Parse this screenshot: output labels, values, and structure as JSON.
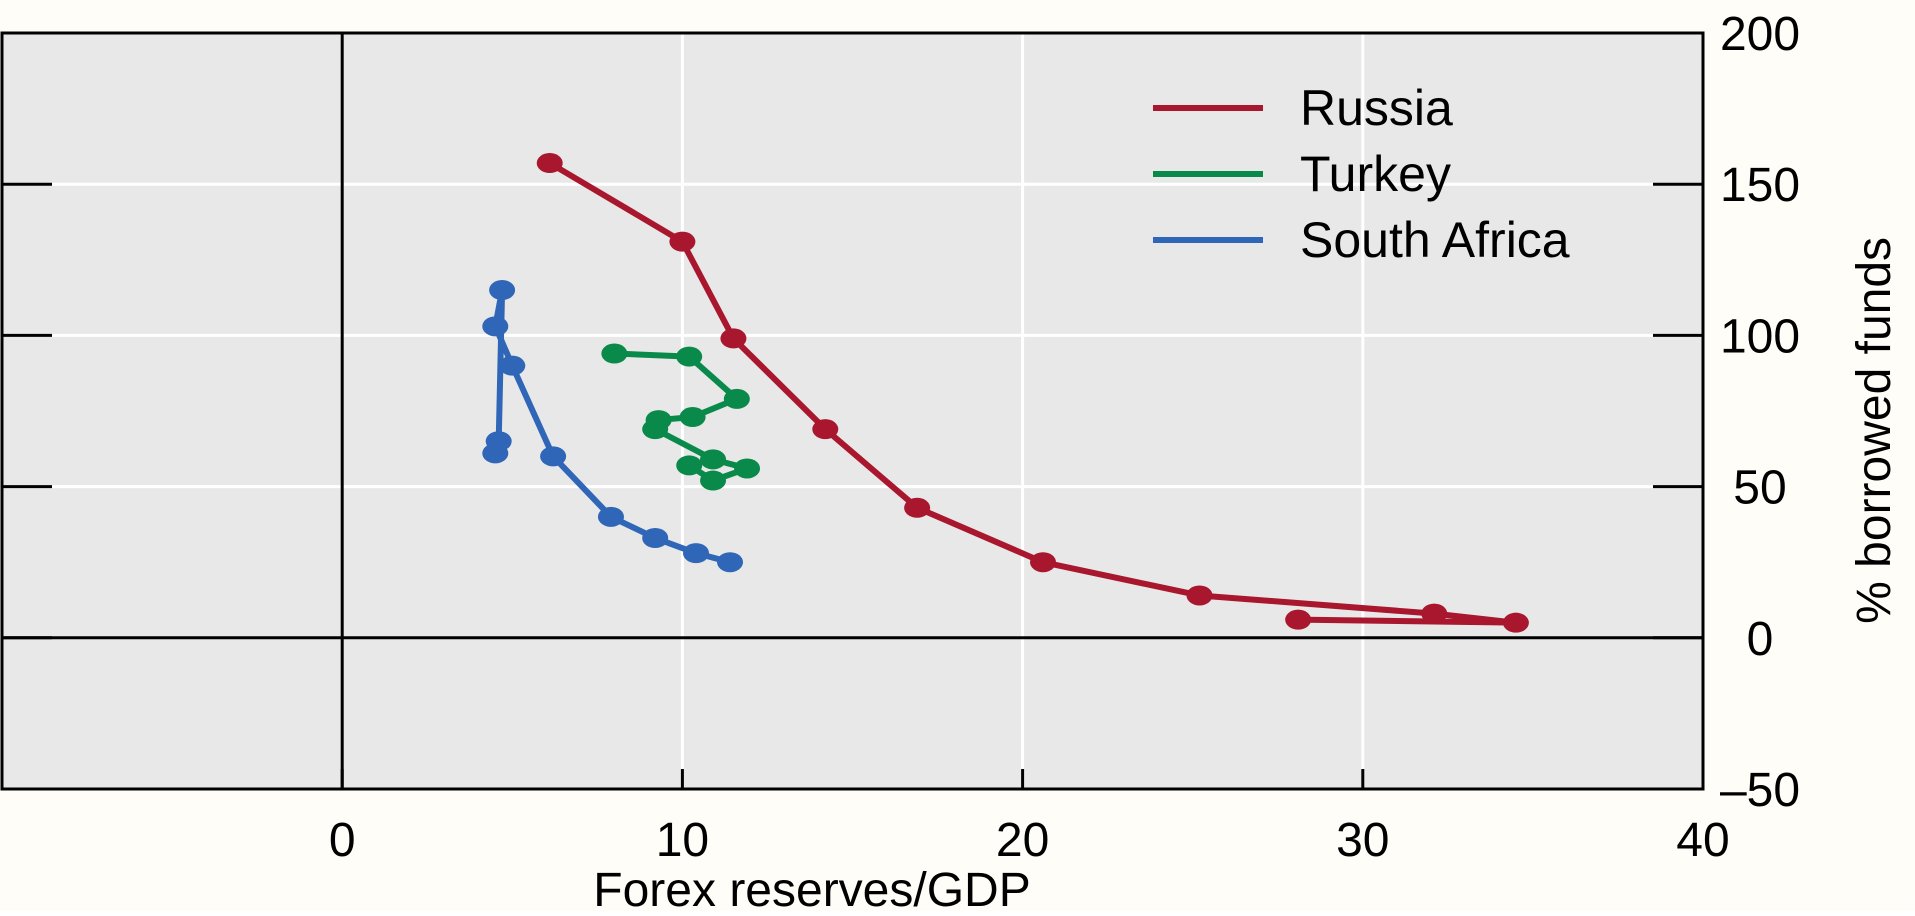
{
  "colors": {
    "background": "#fffdf7",
    "plot_bg": "#e8e8e8",
    "grid": "#ffffff",
    "axis": "#000000"
  },
  "chart_data": {
    "type": "line",
    "title": "",
    "xlabel": "Forex reserves/GDP",
    "ylabel": "% borrowed funds",
    "xlim": [
      -10,
      40
    ],
    "ylim": [
      -50,
      200
    ],
    "x_ticks": [
      0,
      10,
      20,
      30,
      40
    ],
    "y_ticks": [
      -50,
      0,
      50,
      100,
      150,
      200
    ],
    "x_tick_labels": [
      "0",
      "10",
      "20",
      "30",
      "40"
    ],
    "y_tick_labels": [
      "–50",
      "0",
      "50",
      "100",
      "150",
      "200"
    ],
    "grid": true,
    "legend_position": "top-right",
    "series": [
      {
        "name": "Russia",
        "color": "#a8172d",
        "points": [
          [
            6.1,
            157
          ],
          [
            10,
            131
          ],
          [
            11.5,
            99
          ],
          [
            14.2,
            69
          ],
          [
            16.9,
            43
          ],
          [
            20.6,
            25
          ],
          [
            25.2,
            14
          ],
          [
            32.1,
            8
          ],
          [
            34.5,
            5
          ],
          [
            28.1,
            6
          ]
        ]
      },
      {
        "name": "Turkey",
        "color": "#0a8a4a",
        "points": [
          [
            8,
            94
          ],
          [
            10.2,
            93
          ],
          [
            11.6,
            79
          ],
          [
            10.3,
            73
          ],
          [
            9.3,
            72
          ],
          [
            9.2,
            69
          ],
          [
            10.9,
            59
          ],
          [
            11.9,
            56
          ],
          [
            10.9,
            52
          ],
          [
            10.2,
            57
          ]
        ]
      },
      {
        "name": "South Africa",
        "color": "#2f66b7",
        "points": [
          [
            4.5,
            61
          ],
          [
            4.6,
            65
          ],
          [
            4.7,
            115
          ],
          [
            4.5,
            103
          ],
          [
            5,
            90
          ],
          [
            6.2,
            60
          ],
          [
            7.9,
            40
          ],
          [
            9.2,
            33
          ],
          [
            10.4,
            28
          ],
          [
            11.4,
            25
          ]
        ]
      }
    ]
  }
}
